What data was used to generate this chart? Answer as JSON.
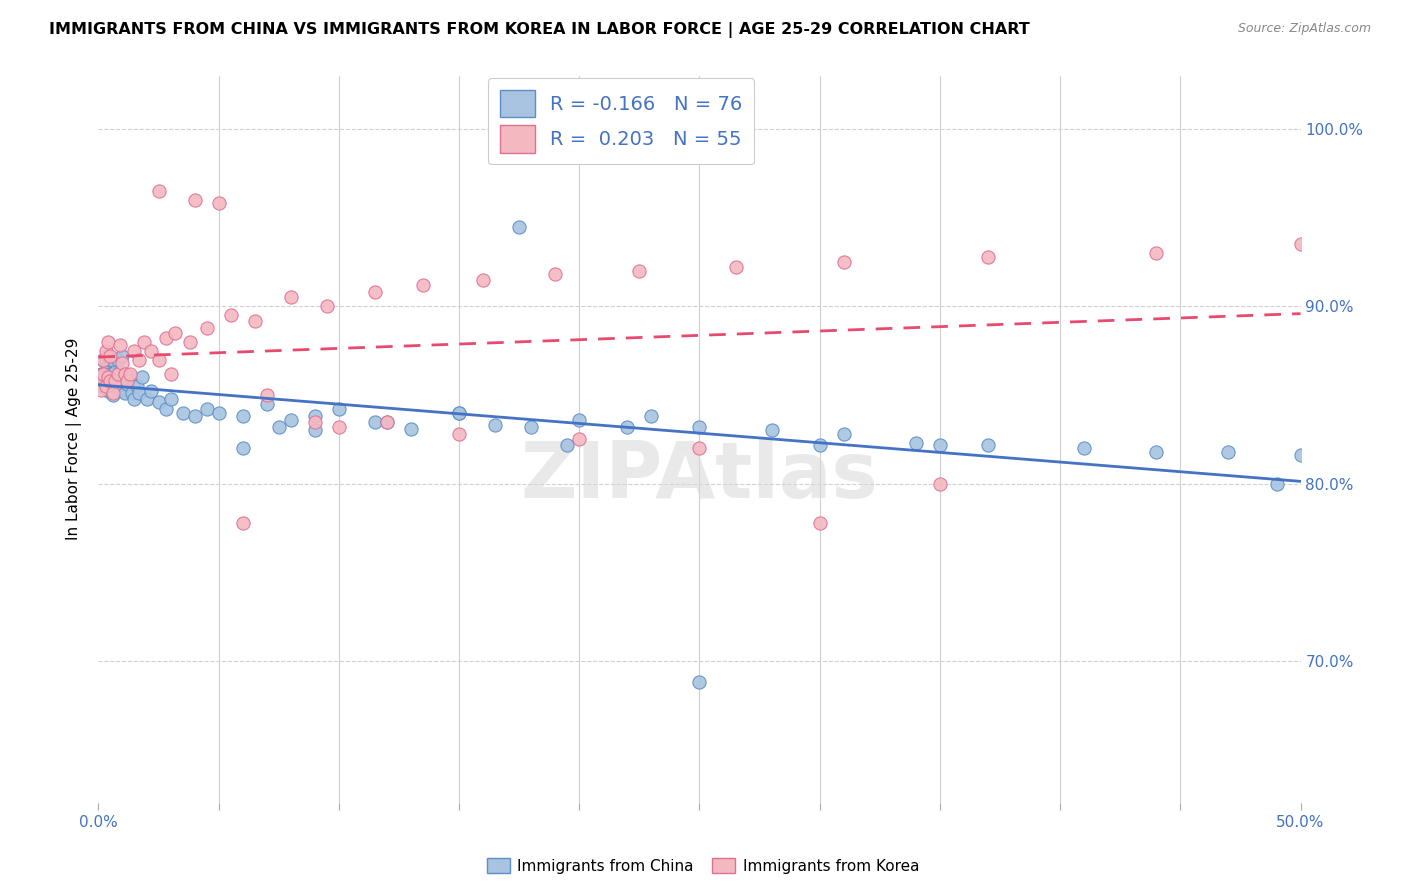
{
  "title": "IMMIGRANTS FROM CHINA VS IMMIGRANTS FROM KOREA IN LABOR FORCE | AGE 25-29 CORRELATION CHART",
  "source": "Source: ZipAtlas.com",
  "ylabel": "In Labor Force | Age 25-29",
  "china_color": "#a8c4e0",
  "korea_color": "#f4b8c1",
  "china_edge_color": "#5b8fc9",
  "korea_edge_color": "#e07090",
  "china_line_color": "#4472c4",
  "korea_line_color": "#e84a6f",
  "R_china": "-0.166",
  "N_china": "76",
  "R_korea": "0.203",
  "N_korea": "55",
  "legend_label_china": "Immigrants from China",
  "legend_label_korea": "Immigrants from Korea",
  "watermark": "ZIPAtlas",
  "xlim": [
    0.0,
    0.5
  ],
  "ylim": [
    0.62,
    1.03
  ],
  "yticks": [
    0.7,
    0.8,
    0.9,
    1.0
  ],
  "ytick_labels": [
    "70.0%",
    "80.0%",
    "90.0%",
    "100.0%"
  ],
  "china_x": [
    0.001,
    0.001,
    0.002,
    0.002,
    0.002,
    0.003,
    0.003,
    0.003,
    0.004,
    0.004,
    0.004,
    0.004,
    0.005,
    0.005,
    0.005,
    0.006,
    0.006,
    0.006,
    0.007,
    0.007,
    0.008,
    0.008,
    0.009,
    0.009,
    0.01,
    0.01,
    0.011,
    0.012,
    0.013,
    0.014,
    0.015,
    0.016,
    0.017,
    0.018,
    0.02,
    0.022,
    0.025,
    0.028,
    0.03,
    0.035,
    0.04,
    0.045,
    0.05,
    0.06,
    0.07,
    0.08,
    0.09,
    0.1,
    0.115,
    0.13,
    0.15,
    0.165,
    0.18,
    0.2,
    0.22,
    0.25,
    0.28,
    0.31,
    0.34,
    0.37,
    0.41,
    0.44,
    0.47,
    0.49,
    0.175,
    0.23,
    0.195,
    0.06,
    0.075,
    0.09,
    0.12,
    0.15,
    0.3,
    0.35,
    0.25,
    0.5
  ],
  "china_y": [
    0.858,
    0.862,
    0.855,
    0.862,
    0.87,
    0.856,
    0.862,
    0.87,
    0.852,
    0.858,
    0.866,
    0.872,
    0.856,
    0.862,
    0.87,
    0.85,
    0.858,
    0.87,
    0.856,
    0.863,
    0.858,
    0.87,
    0.853,
    0.863,
    0.856,
    0.872,
    0.851,
    0.856,
    0.86,
    0.851,
    0.848,
    0.855,
    0.851,
    0.86,
    0.848,
    0.852,
    0.846,
    0.842,
    0.848,
    0.84,
    0.838,
    0.842,
    0.84,
    0.838,
    0.845,
    0.836,
    0.838,
    0.842,
    0.835,
    0.831,
    0.84,
    0.833,
    0.832,
    0.836,
    0.832,
    0.832,
    0.83,
    0.828,
    0.823,
    0.822,
    0.82,
    0.818,
    0.818,
    0.8,
    0.945,
    0.838,
    0.822,
    0.82,
    0.832,
    0.83,
    0.835,
    0.84,
    0.822,
    0.822,
    0.688,
    0.816
  ],
  "korea_x": [
    0.001,
    0.001,
    0.002,
    0.002,
    0.003,
    0.003,
    0.004,
    0.004,
    0.005,
    0.005,
    0.006,
    0.007,
    0.008,
    0.009,
    0.01,
    0.011,
    0.012,
    0.013,
    0.015,
    0.017,
    0.019,
    0.022,
    0.025,
    0.028,
    0.032,
    0.038,
    0.045,
    0.055,
    0.065,
    0.08,
    0.095,
    0.115,
    0.135,
    0.16,
    0.19,
    0.225,
    0.265,
    0.31,
    0.37,
    0.44,
    0.5,
    0.06,
    0.1,
    0.15,
    0.03,
    0.025,
    0.04,
    0.05,
    0.07,
    0.09,
    0.12,
    0.2,
    0.25,
    0.3,
    0.35
  ],
  "korea_y": [
    0.853,
    0.86,
    0.862,
    0.87,
    0.855,
    0.875,
    0.86,
    0.88,
    0.858,
    0.872,
    0.851,
    0.858,
    0.862,
    0.878,
    0.868,
    0.862,
    0.858,
    0.862,
    0.875,
    0.87,
    0.88,
    0.875,
    0.87,
    0.882,
    0.885,
    0.88,
    0.888,
    0.895,
    0.892,
    0.905,
    0.9,
    0.908,
    0.912,
    0.915,
    0.918,
    0.92,
    0.922,
    0.925,
    0.928,
    0.93,
    0.935,
    0.778,
    0.832,
    0.828,
    0.862,
    0.965,
    0.96,
    0.958,
    0.85,
    0.835,
    0.835,
    0.825,
    0.82,
    0.778,
    0.8
  ]
}
